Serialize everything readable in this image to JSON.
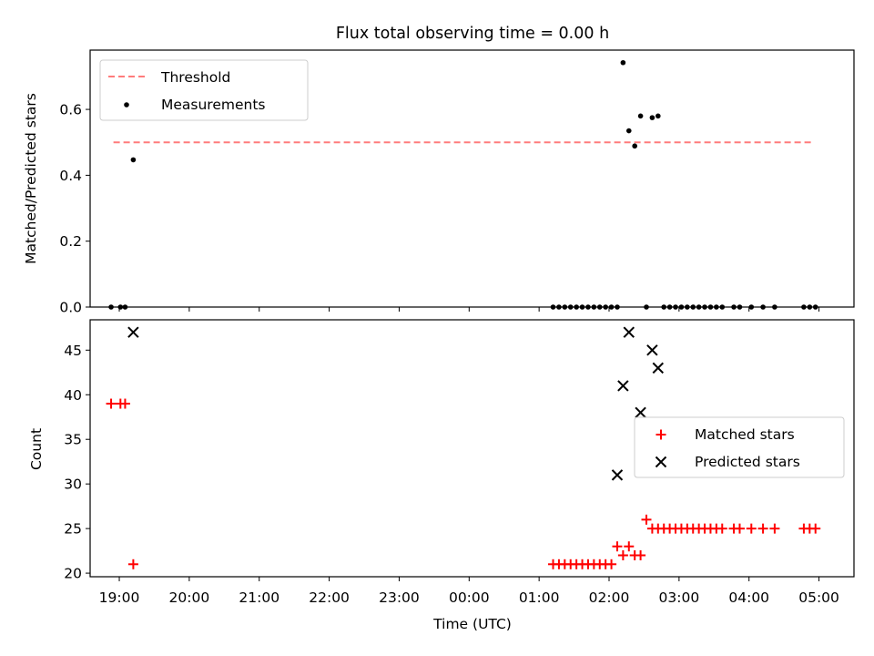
{
  "chart_data": [
    {
      "type": "scatter",
      "title": "Flux total observing time = 0.00 h",
      "xlabel": "",
      "ylabel": "Matched/Predicted stars",
      "x_unit": "time (UTC)",
      "xlim": [
        "18:35",
        "05:30"
      ],
      "ylim": [
        0,
        0.78
      ],
      "yticks": [
        0.0,
        0.2,
        0.4,
        0.6
      ],
      "ytick_labels": [
        "0.0",
        "0.2",
        "0.4",
        "0.6"
      ],
      "grid": false,
      "legend_position": "top-left",
      "series": [
        {
          "name": "Threshold",
          "kind": "line",
          "style": "dashed",
          "color": "#ff7b7b",
          "x": [
            "18:55",
            "04:55"
          ],
          "y": [
            0.5,
            0.5
          ]
        },
        {
          "name": "Measurements",
          "kind": "points",
          "color": "#000000",
          "x": [
            "18:53",
            "19:01",
            "19:05",
            "19:12",
            "01:12",
            "01:17",
            "01:22",
            "01:27",
            "01:32",
            "01:37",
            "01:42",
            "01:47",
            "01:52",
            "01:57",
            "02:02",
            "02:07",
            "02:12",
            "02:17",
            "02:22",
            "02:27",
            "02:32",
            "02:37",
            "02:42",
            "02:47",
            "02:52",
            "02:57",
            "03:02",
            "03:07",
            "03:12",
            "03:17",
            "03:22",
            "03:27",
            "03:32",
            "03:37",
            "03:47",
            "03:52",
            "04:02",
            "04:12",
            "04:22",
            "04:47",
            "04:52",
            "04:57"
          ],
          "y": [
            0.0,
            0.0,
            0.0,
            0.447,
            0.0,
            0.0,
            0.0,
            0.0,
            0.0,
            0.0,
            0.0,
            0.0,
            0.0,
            0.0,
            0.0,
            0.0,
            0.742,
            0.535,
            0.489,
            0.58,
            0.0,
            0.575,
            0.58,
            0.0,
            0.0,
            0.0,
            0.0,
            0.0,
            0.0,
            0.0,
            0.0,
            0.0,
            0.0,
            0.0,
            0.0,
            0.0,
            0.0,
            0.0,
            0.0,
            0.0,
            0.0,
            0.0
          ]
        }
      ]
    },
    {
      "type": "scatter",
      "title": "",
      "xlabel": "Time (UTC)",
      "ylabel": "Count",
      "xlim": [
        "18:35",
        "05:30"
      ],
      "ylim": [
        19.6,
        48.4
      ],
      "yticks": [
        20,
        25,
        30,
        35,
        40,
        45
      ],
      "ytick_labels": [
        "20",
        "25",
        "30",
        "35",
        "40",
        "45"
      ],
      "xticks": [
        "19:00",
        "20:00",
        "21:00",
        "22:00",
        "23:00",
        "00:00",
        "01:00",
        "02:00",
        "03:00",
        "04:00",
        "05:00"
      ],
      "xtick_labels": [
        "19:00",
        "20:00",
        "21:00",
        "22:00",
        "23:00",
        "00:00",
        "01:00",
        "02:00",
        "03:00",
        "04:00",
        "05:00"
      ],
      "grid": false,
      "legend_position": "center-right",
      "series": [
        {
          "name": "Matched stars",
          "kind": "plus",
          "color": "#ff0000",
          "x": [
            "18:53",
            "19:01",
            "19:05",
            "19:12",
            "01:12",
            "01:17",
            "01:22",
            "01:27",
            "01:32",
            "01:37",
            "01:42",
            "01:47",
            "01:52",
            "01:57",
            "02:02",
            "02:07",
            "02:12",
            "02:17",
            "02:22",
            "02:27",
            "02:32",
            "02:37",
            "02:42",
            "02:47",
            "02:52",
            "02:57",
            "03:02",
            "03:07",
            "03:12",
            "03:17",
            "03:22",
            "03:27",
            "03:32",
            "03:37",
            "03:47",
            "03:52",
            "04:02",
            "04:12",
            "04:22",
            "04:47",
            "04:52",
            "04:57"
          ],
          "y": [
            39,
            39,
            39,
            21,
            21,
            21,
            21,
            21,
            21,
            21,
            21,
            21,
            21,
            21,
            21,
            23,
            22,
            23,
            22,
            22,
            26,
            25,
            25,
            25,
            25,
            25,
            25,
            25,
            25,
            25,
            25,
            25,
            25,
            25,
            25,
            25,
            25,
            25,
            25,
            25,
            25,
            25
          ]
        },
        {
          "name": "Predicted stars",
          "kind": "x",
          "color": "#000000",
          "x": [
            "19:12",
            "02:07",
            "02:12",
            "02:17",
            "02:27",
            "02:37",
            "02:42"
          ],
          "y": [
            47,
            31,
            41,
            47,
            38,
            45,
            43
          ]
        }
      ]
    }
  ]
}
